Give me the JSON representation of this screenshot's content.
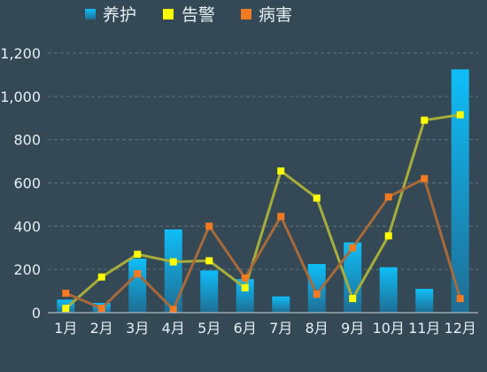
{
  "colors": {
    "background": "#344955",
    "grid": "#5d717c",
    "axis_line": "#c9d3d8",
    "text": "#e6edf2",
    "bar_top": "#0fbef8",
    "bar_bottom": "#1e6d94",
    "line_alert": "#a7ad3a",
    "marker_alert": "#ffff00",
    "line_disease": "#a8693a",
    "marker_disease": "#f47a21"
  },
  "legend": [
    {
      "label": "养护",
      "icon": "gradient-square-icon"
    },
    {
      "label": "告警",
      "icon": "yellow-square-icon"
    },
    {
      "label": "病害",
      "icon": "orange-square-icon"
    }
  ],
  "chart_data": {
    "type": "bar",
    "categories": [
      "1月",
      "2月",
      "3月",
      "4月",
      "5月",
      "6月",
      "7月",
      "8月",
      "9月",
      "10月",
      "11月",
      "12月"
    ],
    "y_ticks": [
      "0",
      "200",
      "400",
      "600",
      "800",
      "1,000",
      "1,200"
    ],
    "ylim": [
      0,
      1200
    ],
    "grid": true,
    "legend_position": "top-left",
    "series": [
      {
        "name": "养护",
        "type": "bar",
        "values": [
          60,
          45,
          250,
          385,
          195,
          155,
          75,
          225,
          325,
          210,
          110,
          1125
        ]
      },
      {
        "name": "告警",
        "type": "line",
        "values": [
          20,
          165,
          270,
          235,
          240,
          115,
          655,
          530,
          65,
          355,
          890,
          915
        ]
      },
      {
        "name": "病害",
        "type": "line",
        "values": [
          90,
          20,
          180,
          15,
          400,
          160,
          445,
          85,
          300,
          535,
          620,
          65
        ]
      }
    ]
  }
}
